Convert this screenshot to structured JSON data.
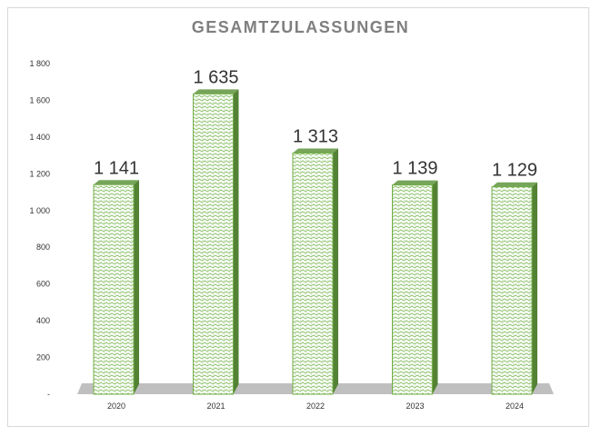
{
  "chart_data": {
    "type": "bar",
    "title": "GESAMTZULASSUNGEN",
    "categories": [
      "2020",
      "2021",
      "2022",
      "2023",
      "2024"
    ],
    "values": [
      1141,
      1635,
      1313,
      1139,
      1129
    ],
    "data_labels": [
      "1 141",
      "1 635",
      "1 313",
      "1 139",
      "1 129"
    ],
    "ylim": [
      0,
      1800
    ],
    "yticks": [
      0,
      200,
      400,
      600,
      800,
      1000,
      1200,
      1400,
      1600,
      1800
    ],
    "ytick_labels": [
      "-",
      "200",
      "400",
      "600",
      "800",
      "1 000",
      "1 200",
      "1 400",
      "1 600",
      "1 800"
    ],
    "grid": false,
    "legend": "none",
    "colors": {
      "bar_face": "#e2f0d9",
      "bar_stroke": "#70ad47",
      "bar_side": "#548235",
      "bar_top": "#76a55a",
      "floor": "#bfbfbf"
    }
  }
}
